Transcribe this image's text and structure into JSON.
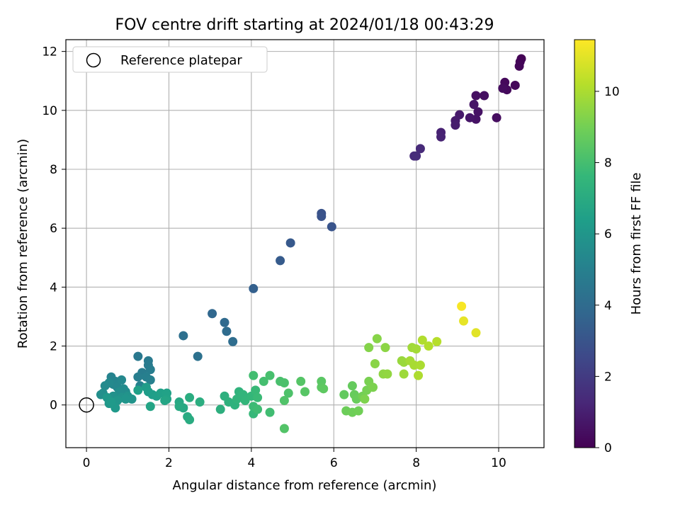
{
  "chart_data": {
    "type": "scatter",
    "title": "FOV centre drift starting at 2024/01/18 00:43:29",
    "xlabel": "Angular distance from reference (arcmin)",
    "ylabel": "Rotation from reference (arcmin)",
    "xlim": [
      -0.5,
      11.1
    ],
    "ylim": [
      -1.45,
      12.4
    ],
    "xticks": [
      "0",
      "2",
      "4",
      "6",
      "8",
      "10"
    ],
    "yticks": [
      "0",
      "2",
      "4",
      "6",
      "8",
      "10",
      "12"
    ],
    "grid": true,
    "legend": {
      "placement": "top-left",
      "entries": [
        "Reference platepar"
      ]
    },
    "reference_point": {
      "x": 0,
      "y": 0
    },
    "colorbar": {
      "label": "Hours from first FF file",
      "colormap": "viridis",
      "range": [
        0,
        11.45
      ],
      "ticks": [
        "0",
        "2",
        "4",
        "6",
        "8",
        "10"
      ],
      "colors": [
        "#440154",
        "#482878",
        "#3e4989",
        "#31688e",
        "#26828e",
        "#1f9e89",
        "#35b779",
        "#6ece58",
        "#b5de2b",
        "#fde725"
      ]
    },
    "series": [
      {
        "value_fields": [
          "x_arcmin",
          "y_arcmin",
          "hours"
        ],
        "points": [
          [
            10.55,
            11.75,
            0.05
          ],
          [
            10.52,
            11.65,
            0.1
          ],
          [
            10.5,
            11.5,
            0.15
          ],
          [
            10.4,
            10.85,
            0.2
          ],
          [
            10.15,
            10.95,
            0.25
          ],
          [
            10.2,
            10.7,
            0.3
          ],
          [
            10.1,
            10.75,
            0.35
          ],
          [
            9.95,
            9.75,
            0.4
          ],
          [
            9.65,
            10.5,
            0.45
          ],
          [
            9.45,
            10.5,
            0.5
          ],
          [
            9.5,
            9.95,
            0.55
          ],
          [
            9.45,
            9.7,
            0.6
          ],
          [
            9.4,
            10.2,
            0.65
          ],
          [
            9.3,
            9.75,
            0.7
          ],
          [
            9.05,
            9.85,
            0.8
          ],
          [
            8.95,
            9.65,
            0.85
          ],
          [
            8.95,
            9.5,
            0.9
          ],
          [
            8.6,
            9.25,
            1.05
          ],
          [
            8.6,
            9.1,
            1.1
          ],
          [
            8.1,
            8.7,
            1.35
          ],
          [
            7.95,
            8.45,
            1.4
          ],
          [
            8.0,
            8.45,
            1.45
          ],
          [
            5.7,
            6.5,
            2.9
          ],
          [
            5.7,
            6.4,
            2.95
          ],
          [
            5.95,
            6.05,
            3.0
          ],
          [
            4.95,
            5.5,
            3.2
          ],
          [
            4.7,
            4.9,
            3.3
          ],
          [
            4.05,
            3.95,
            3.5
          ],
          [
            3.05,
            3.1,
            3.8
          ],
          [
            3.35,
            2.8,
            3.9
          ],
          [
            3.4,
            2.5,
            4.0
          ],
          [
            3.55,
            2.15,
            4.05
          ],
          [
            2.35,
            2.35,
            4.2
          ],
          [
            2.7,
            1.65,
            4.25
          ],
          [
            1.25,
            1.65,
            4.6
          ],
          [
            1.5,
            1.5,
            4.7
          ],
          [
            1.5,
            1.35,
            4.75
          ],
          [
            1.35,
            1.1,
            4.8
          ],
          [
            1.55,
            1.2,
            4.85
          ],
          [
            1.25,
            0.95,
            4.9
          ],
          [
            1.45,
            0.95,
            4.95
          ],
          [
            1.55,
            0.85,
            5.0
          ],
          [
            1.3,
            0.65,
            5.05
          ],
          [
            0.6,
            0.95,
            5.15
          ],
          [
            0.7,
            0.8,
            5.2
          ],
          [
            0.65,
            0.7,
            5.25
          ],
          [
            0.75,
            0.6,
            5.3
          ],
          [
            0.85,
            0.85,
            5.35
          ],
          [
            0.55,
            0.75,
            5.4
          ],
          [
            0.45,
            0.65,
            5.45
          ],
          [
            0.9,
            0.55,
            5.5
          ],
          [
            0.95,
            0.45,
            5.55
          ],
          [
            0.8,
            0.45,
            5.6
          ],
          [
            0.4,
            0.4,
            5.65
          ],
          [
            0.35,
            0.35,
            5.7
          ],
          [
            0.65,
            0.3,
            5.75
          ],
          [
            0.85,
            0.25,
            5.8
          ],
          [
            1.0,
            0.3,
            5.85
          ],
          [
            1.1,
            0.2,
            5.9
          ],
          [
            0.95,
            0.2,
            5.95
          ],
          [
            0.75,
            0.15,
            6.0
          ],
          [
            0.55,
            0.05,
            6.05
          ],
          [
            0.5,
            0.25,
            6.1
          ],
          [
            0.7,
            -0.1,
            6.15
          ],
          [
            0.6,
            0.1,
            6.2
          ],
          [
            1.45,
            0.6,
            6.25
          ],
          [
            1.5,
            0.45,
            6.3
          ],
          [
            1.6,
            0.35,
            6.35
          ],
          [
            1.7,
            0.3,
            6.4
          ],
          [
            1.25,
            0.5,
            6.45
          ],
          [
            1.8,
            0.4,
            6.5
          ],
          [
            1.95,
            0.4,
            6.55
          ],
          [
            1.95,
            0.2,
            6.6
          ],
          [
            1.55,
            -0.05,
            6.65
          ],
          [
            1.9,
            0.15,
            6.7
          ],
          [
            2.25,
            0.1,
            6.8
          ],
          [
            2.35,
            -0.1,
            6.85
          ],
          [
            2.25,
            -0.05,
            6.9
          ],
          [
            2.45,
            -0.4,
            6.95
          ],
          [
            2.5,
            -0.5,
            7.0
          ],
          [
            2.5,
            0.25,
            7.05
          ],
          [
            2.75,
            0.1,
            7.1
          ],
          [
            3.25,
            -0.15,
            7.2
          ],
          [
            3.35,
            0.3,
            7.25
          ],
          [
            3.45,
            0.1,
            7.3
          ],
          [
            3.6,
            0.0,
            7.35
          ],
          [
            3.7,
            0.45,
            7.4
          ],
          [
            3.65,
            0.2,
            7.45
          ],
          [
            3.8,
            0.35,
            7.5
          ],
          [
            3.85,
            0.15,
            7.55
          ],
          [
            4.0,
            0.3,
            7.6
          ],
          [
            4.05,
            -0.3,
            7.65
          ],
          [
            4.1,
            0.5,
            7.7
          ],
          [
            4.15,
            0.25,
            7.75
          ],
          [
            4.05,
            -0.05,
            7.8
          ],
          [
            4.15,
            -0.15,
            7.85
          ],
          [
            4.45,
            -0.25,
            7.9
          ],
          [
            4.05,
            1.0,
            7.95
          ],
          [
            4.3,
            0.8,
            8.0
          ],
          [
            4.45,
            1.0,
            8.05
          ],
          [
            4.7,
            0.8,
            8.1
          ],
          [
            4.8,
            0.75,
            8.15
          ],
          [
            4.9,
            0.4,
            8.2
          ],
          [
            4.8,
            0.15,
            8.25
          ],
          [
            4.8,
            -0.8,
            8.3
          ],
          [
            5.2,
            0.8,
            8.35
          ],
          [
            5.3,
            0.45,
            8.4
          ],
          [
            5.7,
            0.8,
            8.45
          ],
          [
            5.7,
            0.6,
            8.5
          ],
          [
            5.75,
            0.55,
            8.55
          ],
          [
            6.25,
            0.35,
            8.65
          ],
          [
            6.45,
            0.65,
            8.7
          ],
          [
            6.5,
            0.35,
            8.75
          ],
          [
            6.55,
            0.2,
            8.8
          ],
          [
            6.3,
            -0.2,
            8.85
          ],
          [
            6.45,
            -0.25,
            8.9
          ],
          [
            6.6,
            -0.2,
            8.95
          ],
          [
            6.7,
            0.3,
            9.0
          ],
          [
            6.8,
            0.5,
            9.05
          ],
          [
            6.85,
            0.8,
            9.1
          ],
          [
            6.95,
            0.6,
            9.15
          ],
          [
            6.75,
            0.2,
            9.2
          ],
          [
            6.85,
            1.95,
            9.3
          ],
          [
            7.05,
            2.25,
            9.35
          ],
          [
            7.0,
            1.4,
            9.4
          ],
          [
            7.25,
            1.95,
            9.45
          ],
          [
            7.2,
            1.05,
            9.5
          ],
          [
            7.3,
            1.05,
            9.55
          ],
          [
            7.65,
            1.5,
            9.65
          ],
          [
            7.7,
            1.45,
            9.7
          ],
          [
            7.7,
            1.05,
            9.75
          ],
          [
            7.9,
            1.95,
            9.8
          ],
          [
            8.0,
            1.9,
            9.85
          ],
          [
            7.85,
            1.5,
            9.9
          ],
          [
            7.95,
            1.35,
            9.95
          ],
          [
            8.1,
            1.35,
            10.0
          ],
          [
            8.05,
            1.0,
            10.05
          ],
          [
            8.15,
            2.2,
            10.1
          ],
          [
            8.3,
            2.0,
            10.15
          ],
          [
            8.5,
            2.15,
            10.2
          ],
          [
            9.45,
            2.45,
            10.95
          ],
          [
            9.15,
            2.85,
            11.05
          ],
          [
            9.1,
            3.35,
            11.35
          ]
        ]
      }
    ]
  }
}
